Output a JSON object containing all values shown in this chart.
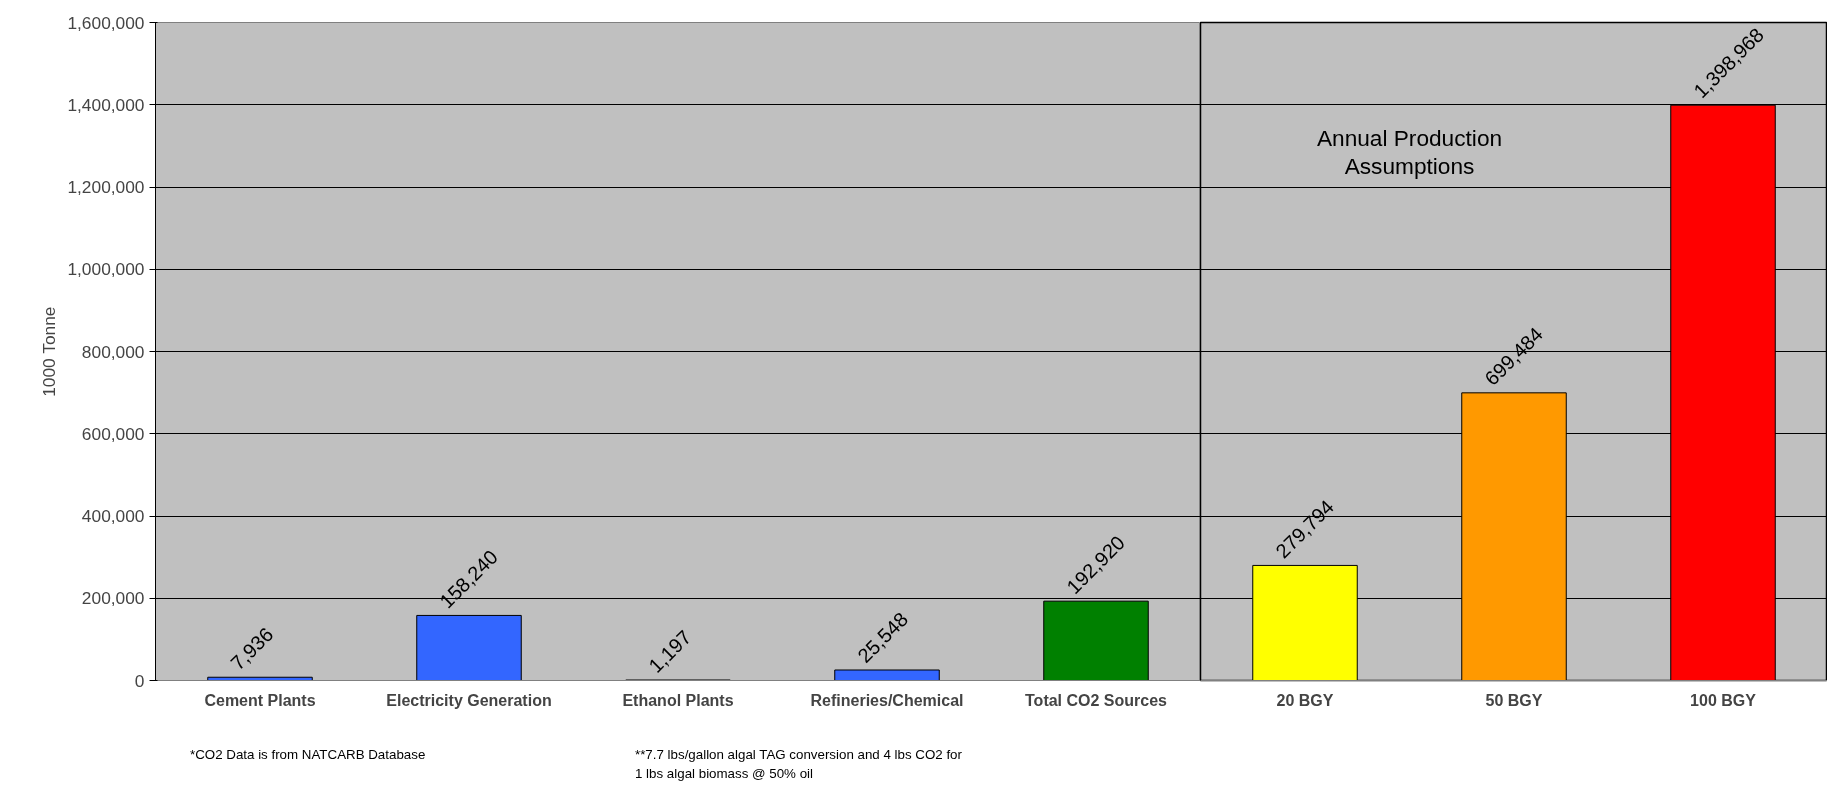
{
  "chart_data": [
    {
      "type": "bar",
      "ylabel": "1000 Tonne",
      "categories": [
        "Cement Plants",
        "Electricity Generation",
        "Ethanol Plants",
        "Refineries/Chemical",
        "Total CO2 Sources"
      ],
      "values": [
        7936,
        158240,
        1197,
        25548,
        192920
      ],
      "colors": [
        "#3366ff",
        "#3366ff",
        "#3366ff",
        "#3366ff",
        "#008000"
      ],
      "value_labels": [
        "7,936",
        "158,240",
        "1,197",
        "25,548",
        "192,920"
      ],
      "ylim": [
        0,
        1600000
      ],
      "yticks": [
        {
          "value": 0,
          "label": "0"
        },
        {
          "value": 200000,
          "label": "200,000"
        },
        {
          "value": 400000,
          "label": "400,000"
        },
        {
          "value": 600000,
          "label": "600,000"
        },
        {
          "value": 800000,
          "label": "800,000"
        },
        {
          "value": 1000000,
          "label": "1,000,000"
        },
        {
          "value": 1200000,
          "label": "1,200,000"
        },
        {
          "value": 1400000,
          "label": "1,400,000"
        },
        {
          "value": 1600000,
          "label": "1,600,000"
        }
      ],
      "grid": "y",
      "annotations": [
        "*CO2 Data is from NATCARB Database",
        "**7.7 lbs/gallon algal TAG conversion and 4 lbs CO2 for 1 lbs algal biomass @ 50% oil"
      ]
    },
    {
      "type": "bar",
      "categories": [
        "20 BGY",
        "50 BGY",
        "100 BGY"
      ],
      "values": [
        279794,
        699484,
        1398968
      ],
      "colors": [
        "#ffff00",
        "#ff9900",
        "#ff0000"
      ],
      "value_labels": [
        "279,794",
        "699,484",
        "1,398,968"
      ],
      "ylim": [
        0,
        1600000
      ],
      "yticks": [
        0,
        200000,
        400000,
        600000,
        800000,
        1000000,
        1200000,
        1400000,
        1600000
      ],
      "tick_labels": "x",
      "grid": "y",
      "annotations": [
        "Annual Production Assumptions"
      ]
    }
  ]
}
